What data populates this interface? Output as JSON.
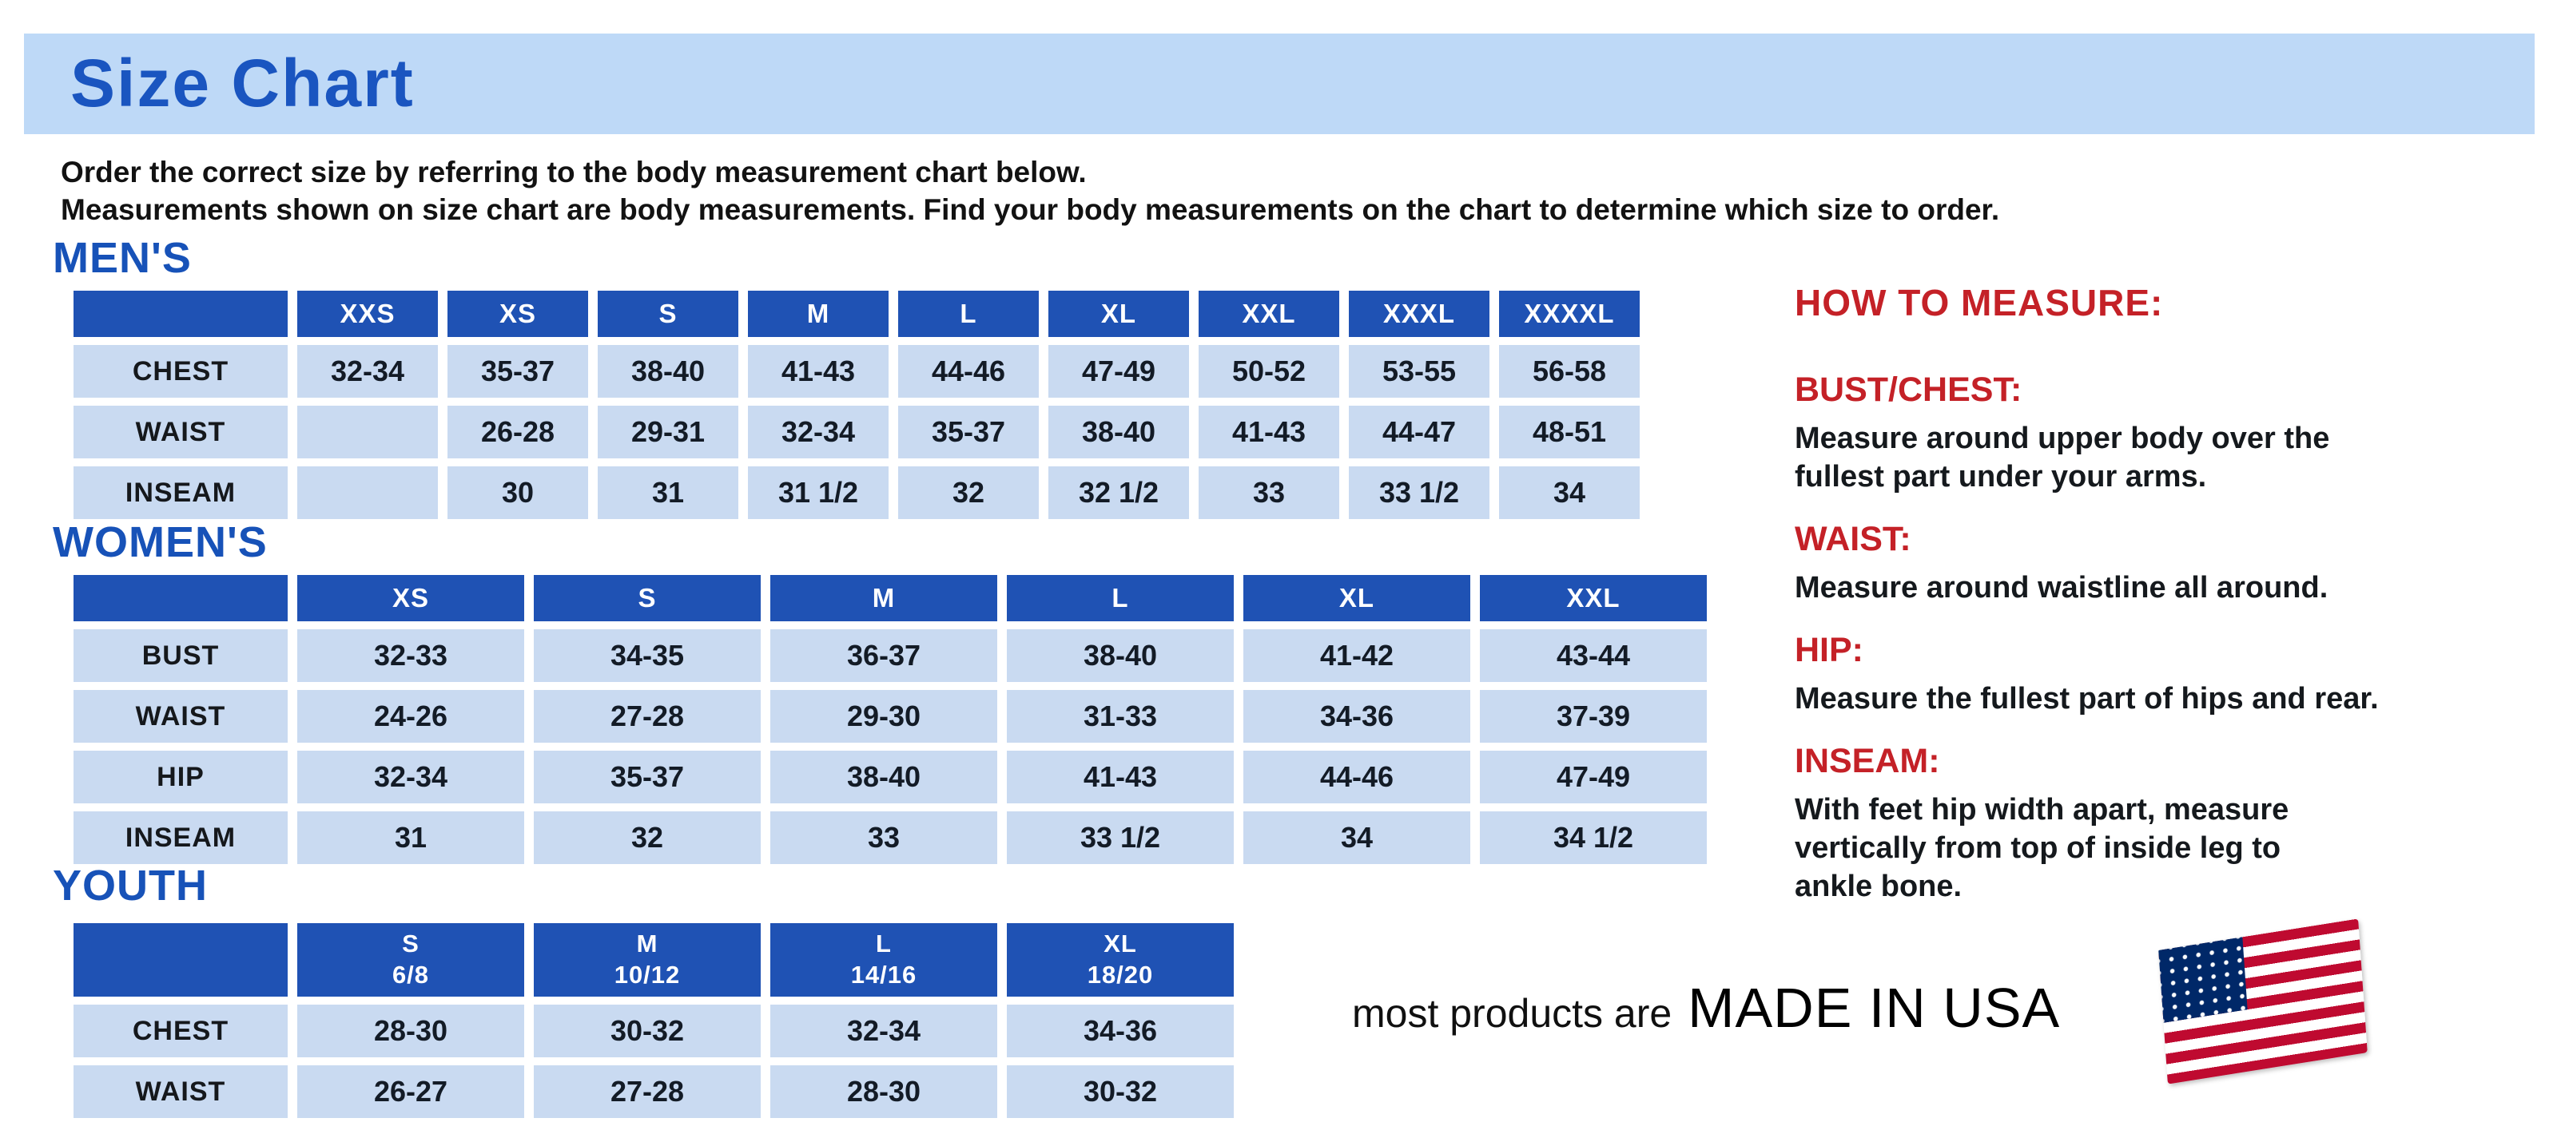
{
  "title": "Size Chart",
  "intro": {
    "line1": "Order the correct size by referring to the body measurement chart below.",
    "line2": "Measurements shown on size chart are body measurements.  Find your body measurements on the chart to determine which size to order."
  },
  "tables": {
    "mens": {
      "heading": "MEN'S",
      "columns": [
        "XXS",
        "XS",
        "S",
        "M",
        "L",
        "XL",
        "XXL",
        "XXXL",
        "XXXXL"
      ],
      "rows": [
        {
          "label": "CHEST",
          "values": [
            "32-34",
            "35-37",
            "38-40",
            "41-43",
            "44-46",
            "47-49",
            "50-52",
            "53-55",
            "56-58"
          ]
        },
        {
          "label": "WAIST",
          "values": [
            "",
            "26-28",
            "29-31",
            "32-34",
            "35-37",
            "38-40",
            "41-43",
            "44-47",
            "48-51"
          ]
        },
        {
          "label": "INSEAM",
          "values": [
            "",
            "30",
            "31",
            "31 1/2",
            "32",
            "32 1/2",
            "33",
            "33 1/2",
            "34"
          ]
        }
      ]
    },
    "womens": {
      "heading": "WOMEN'S",
      "columns": [
        "XS",
        "S",
        "M",
        "L",
        "XL",
        "XXL"
      ],
      "rows": [
        {
          "label": "BUST",
          "values": [
            "32-33",
            "34-35",
            "36-37",
            "38-40",
            "41-42",
            "43-44"
          ]
        },
        {
          "label": "WAIST",
          "values": [
            "24-26",
            "27-28",
            "29-30",
            "31-33",
            "34-36",
            "37-39"
          ]
        },
        {
          "label": "HIP",
          "values": [
            "32-34",
            "35-37",
            "38-40",
            "41-43",
            "44-46",
            "47-49"
          ]
        },
        {
          "label": "INSEAM",
          "values": [
            "31",
            "32",
            "33",
            "33 1/2",
            "34",
            "34 1/2"
          ]
        }
      ]
    },
    "youth": {
      "heading": "YOUTH",
      "columns": [
        {
          "size": "S",
          "range": "6/8"
        },
        {
          "size": "M",
          "range": "10/12"
        },
        {
          "size": "L",
          "range": "14/16"
        },
        {
          "size": "XL",
          "range": "18/20"
        }
      ],
      "rows": [
        {
          "label": "CHEST",
          "values": [
            "28-30",
            "30-32",
            "32-34",
            "34-36"
          ]
        },
        {
          "label": "WAIST",
          "values": [
            "26-27",
            "27-28",
            "28-30",
            "30-32"
          ]
        }
      ]
    }
  },
  "how_to_measure": {
    "heading": "HOW TO MEASURE:",
    "items": [
      {
        "label": "BUST/CHEST:",
        "text": "Measure around upper body over the\nfullest part under your arms."
      },
      {
        "label": "WAIST:",
        "text": "Measure around waistline all around."
      },
      {
        "label": "HIP:",
        "text": "Measure the fullest part of hips and rear."
      },
      {
        "label": "INSEAM:",
        "text": "With feet hip width apart, measure\nvertically from top of inside leg to\nankle bone."
      }
    ]
  },
  "footer": {
    "prefix": "most products are",
    "made_in": "MADE IN USA",
    "flag_icon": "us-flag-icon"
  },
  "colors": {
    "banner_blue": "#BED9F7",
    "title_blue": "#1A55C0",
    "heading_blue": "#1752B8",
    "header_blue": "#1F52B4",
    "cell_blue": "#C9DAF1",
    "red_accent": "#C42127"
  }
}
